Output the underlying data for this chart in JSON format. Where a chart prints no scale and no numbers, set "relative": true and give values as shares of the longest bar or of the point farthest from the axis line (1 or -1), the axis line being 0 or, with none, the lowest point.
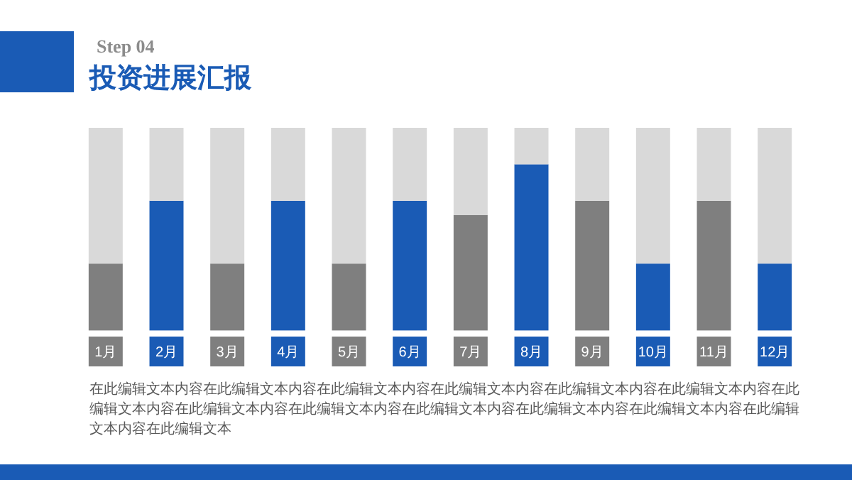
{
  "chart_data": {
    "type": "bar",
    "subtitle": "Step 04",
    "title": "投资进展汇报",
    "categories": [
      "1月",
      "2月",
      "3月",
      "4月",
      "5月",
      "6月",
      "7月",
      "8月",
      "9月",
      "10月",
      "11月",
      "12月"
    ],
    "stacked": true,
    "relative": true,
    "series": [
      {
        "colors": [
          "#7f7f7f",
          "#1a5bb5",
          "#7f7f7f",
          "#1a5bb5",
          "#7f7f7f",
          "#1a5bb5",
          "#7f7f7f",
          "#1a5bb5",
          "#7f7f7f",
          "#1a5bb5",
          "#7f7f7f",
          "#1a5bb5"
        ],
        "values": [
          0.33,
          0.64,
          0.33,
          0.64,
          0.33,
          0.64,
          0.57,
          0.82,
          0.64,
          0.33,
          0.64,
          0.33
        ]
      },
      {
        "color": "#d9d9d9",
        "values": [
          0.67,
          0.36,
          0.67,
          0.36,
          0.67,
          0.36,
          0.43,
          0.18,
          0.36,
          0.67,
          0.36,
          0.67
        ]
      }
    ],
    "annotations": [
      "在此编辑文本内容在此编辑文本内容在此编辑文本内容在此编辑文本内容在此编辑文本内容在此编辑文本内容在此编辑文本内容在此编辑文本内容在此编辑文本内容在此编辑文本内容在此编辑文本内容在此编辑文本内容在此编辑文本内容在此编辑文本"
    ]
  }
}
